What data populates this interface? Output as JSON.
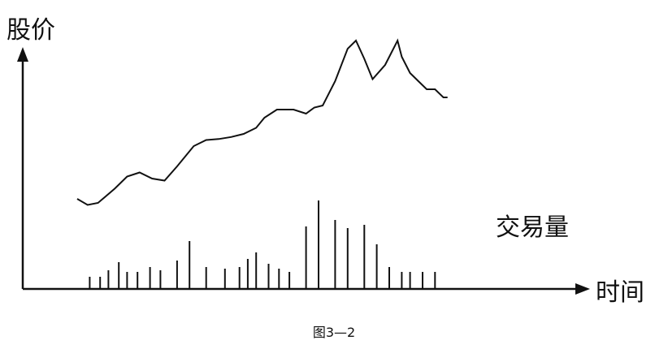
{
  "chart_data": {
    "type": "line",
    "ylabel": "股价",
    "xlabel": "时间",
    "volume_label": "交易量",
    "caption": "图3—2",
    "grid": false,
    "xlim": [
      0,
      100
    ],
    "ylim": [
      0,
      100
    ],
    "price_series": {
      "x": [
        0,
        2.5,
        5,
        9,
        12,
        15,
        18,
        21,
        24,
        28,
        31,
        34,
        37,
        40,
        43,
        45,
        48,
        52,
        55,
        57,
        59,
        62,
        65,
        67,
        69,
        71,
        74,
        77,
        78,
        80,
        82,
        84,
        86,
        88,
        89
      ],
      "y": [
        20,
        17,
        18,
        25,
        31,
        33,
        30,
        29,
        36,
        46,
        49,
        49.5,
        50.5,
        52,
        55,
        60,
        64,
        64,
        62,
        65,
        66,
        78,
        94,
        98,
        89,
        79,
        86,
        98,
        90,
        82,
        78,
        74,
        74,
        70,
        70
      ]
    },
    "volume_series": {
      "x": [
        3,
        5.5,
        7.5,
        10,
        12,
        14.5,
        17.5,
        20,
        24,
        27,
        31,
        35.5,
        39,
        41,
        43,
        46,
        48.5,
        51,
        55,
        58,
        62,
        65,
        69,
        72,
        75,
        78,
        80,
        83,
        86
      ],
      "values": [
        14,
        14,
        22,
        32,
        20,
        20,
        26,
        22,
        34,
        58,
        26,
        24,
        26,
        36,
        44,
        30,
        24,
        20,
        76,
        108,
        84,
        74,
        78,
        54,
        26,
        20,
        20,
        20,
        20
      ]
    }
  }
}
